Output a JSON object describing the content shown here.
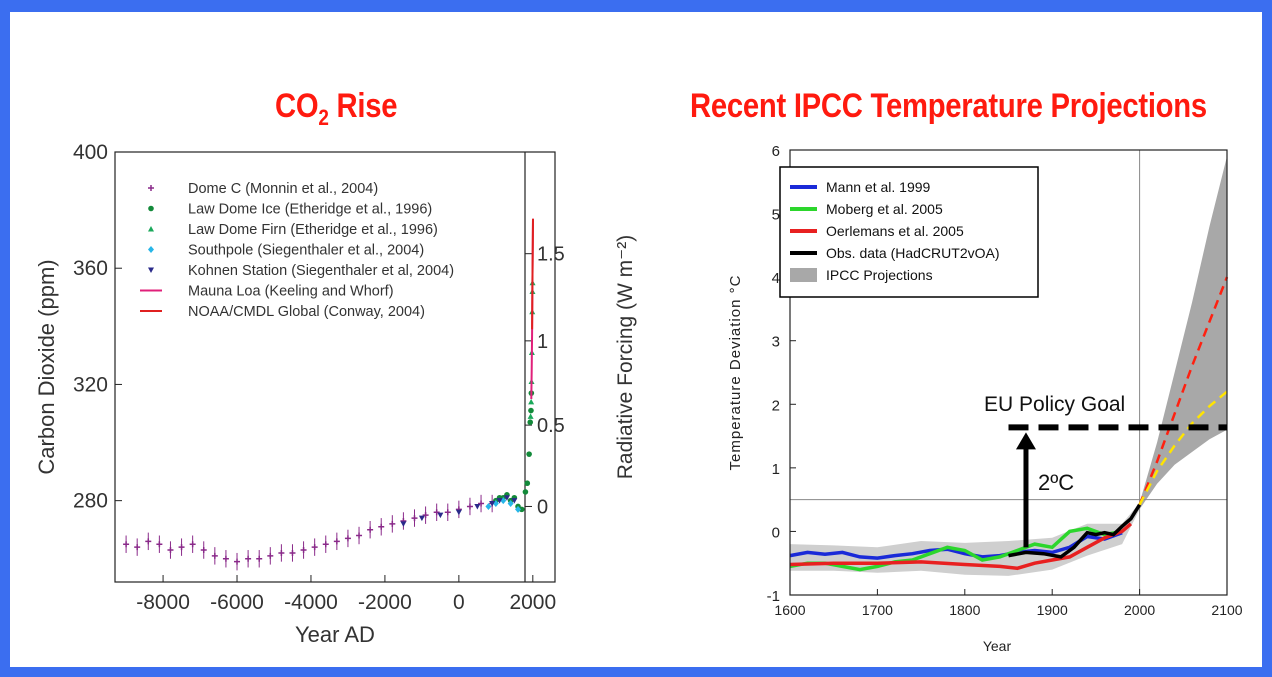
{
  "titles": {
    "left_main": "CO",
    "left_sub": "2",
    "left_rest": " Rise",
    "right": "Recent IPCC Temperature Projections"
  },
  "chart_data": [
    {
      "type": "scatter",
      "title": "CO2 Rise",
      "xlabel": "Year AD",
      "ylabel": "Carbon Dioxide (ppm)",
      "y2label": "Radiative Forcing (W m⁻²)",
      "xlim": [
        -9300,
        2600
      ],
      "ylim": [
        252,
        400
      ],
      "xticks": [
        -8000,
        -6000,
        -4000,
        -2000,
        0,
        2000
      ],
      "xtick_labels": [
        "-8000",
        "-6000",
        "-4000",
        "-2000",
        "0",
        "2000"
      ],
      "yticks": [
        280,
        320,
        360,
        400
      ],
      "ytick_labels": [
        "280",
        "320",
        "360",
        "400"
      ],
      "y2ticks": [
        {
          "ppm": 278,
          "label": "0"
        },
        {
          "ppm": 306,
          "label": "0.5"
        },
        {
          "ppm": 335,
          "label": "1"
        },
        {
          "ppm": 365,
          "label": "1.5"
        }
      ],
      "legend_position": "top-left",
      "series": [
        {
          "name": "Dome C (Monnin et al., 2004)",
          "color": "#8a2a8a",
          "marker": "plus",
          "points": [
            [
              -9000,
              265
            ],
            [
              -8700,
              264
            ],
            [
              -8400,
              266
            ],
            [
              -8100,
              265
            ],
            [
              -7800,
              263
            ],
            [
              -7500,
              264
            ],
            [
              -7200,
              265
            ],
            [
              -6900,
              263
            ],
            [
              -6600,
              261
            ],
            [
              -6300,
              260
            ],
            [
              -6000,
              259
            ],
            [
              -5700,
              260
            ],
            [
              -5400,
              260
            ],
            [
              -5100,
              261
            ],
            [
              -4800,
              262
            ],
            [
              -4500,
              262
            ],
            [
              -4200,
              263
            ],
            [
              -3900,
              264
            ],
            [
              -3600,
              265
            ],
            [
              -3300,
              266
            ],
            [
              -3000,
              267
            ],
            [
              -2700,
              268
            ],
            [
              -2400,
              270
            ],
            [
              -2100,
              271
            ],
            [
              -1800,
              272
            ],
            [
              -1500,
              273
            ],
            [
              -1200,
              274
            ],
            [
              -900,
              275
            ],
            [
              -600,
              276
            ],
            [
              -300,
              276
            ],
            [
              0,
              277
            ],
            [
              300,
              278
            ],
            [
              600,
              279
            ],
            [
              900,
              279
            ]
          ]
        },
        {
          "name": "Law Dome Ice (Etheridge et al., 1996)",
          "color": "#138a3a",
          "marker": "circle",
          "points": [
            [
              1000,
              280
            ],
            [
              1100,
              281
            ],
            [
              1200,
              281
            ],
            [
              1300,
              282
            ],
            [
              1400,
              280
            ],
            [
              1500,
              281
            ],
            [
              1600,
              278
            ],
            [
              1700,
              277
            ],
            [
              1800,
              283
            ],
            [
              1850,
              286
            ],
            [
              1900,
              296
            ],
            [
              1930,
              307
            ],
            [
              1950,
              311
            ],
            [
              1960,
              317
            ]
          ]
        },
        {
          "name": "Law Dome Firn (Etheridge et al., 1996)",
          "color": "#1aa85a",
          "marker": "triangle",
          "points": [
            [
              1940,
              309
            ],
            [
              1955,
              314
            ],
            [
              1965,
              321
            ],
            [
              1975,
              331
            ],
            [
              1985,
              345
            ],
            [
              1990,
              352
            ],
            [
              1993,
              355
            ]
          ]
        },
        {
          "name": "Southpole (Siegenthaler et al., 2004)",
          "color": "#27b6e8",
          "marker": "diamond",
          "points": [
            [
              800,
              278
            ],
            [
              1000,
              279
            ],
            [
              1200,
              280
            ],
            [
              1400,
              279
            ],
            [
              1600,
              277
            ]
          ]
        },
        {
          "name": "Kohnen Station (Siegenthaler et al, 2004)",
          "color": "#2a2a8a",
          "marker": "triangle-down",
          "points": [
            [
              -1500,
              272
            ],
            [
              -1000,
              274
            ],
            [
              -500,
              275
            ],
            [
              0,
              276
            ],
            [
              500,
              278
            ],
            [
              900,
              279
            ],
            [
              1100,
              280
            ],
            [
              1300,
              281
            ],
            [
              1500,
              280
            ]
          ]
        },
        {
          "name": "Mauna Loa (Keeling and Whorf)",
          "color": "#e0207a",
          "marker": "line",
          "points": [
            [
              1958,
              315
            ],
            [
              1970,
              325
            ],
            [
              1980,
              338
            ],
            [
              1990,
              354
            ],
            [
              2000,
              369
            ],
            [
              2004,
              377
            ]
          ]
        },
        {
          "name": "NOAA/CMDL Global  (Conway, 2004)",
          "color": "#e02020",
          "marker": "line",
          "points": [
            [
              1980,
              339
            ],
            [
              1990,
              354
            ],
            [
              2000,
              369
            ],
            [
              2004,
              377
            ]
          ]
        }
      ]
    },
    {
      "type": "line",
      "title": "Recent IPCC Temperature Projections",
      "xlabel": "Year",
      "ylabel": "Temperature Deviation °C",
      "xlim": [
        1600,
        2100
      ],
      "ylim": [
        -1,
        6
      ],
      "xticks": [
        1600,
        1700,
        1800,
        1900,
        2000,
        2100
      ],
      "xtick_labels": [
        "1600",
        "1700",
        "1800",
        "1900",
        "2000",
        "2100"
      ],
      "yticks": [
        -1,
        0,
        1,
        2,
        3,
        4,
        5,
        6
      ],
      "ytick_labels": [
        "-1",
        "0",
        "1",
        "2",
        "3",
        "4",
        "5",
        "6"
      ],
      "legend_position": "top-left",
      "series": [
        {
          "name": "Mann et al. 1999",
          "color": "#1a2ad8",
          "points": [
            [
              1600,
              -0.38
            ],
            [
              1620,
              -0.33
            ],
            [
              1640,
              -0.36
            ],
            [
              1660,
              -0.33
            ],
            [
              1680,
              -0.4
            ],
            [
              1700,
              -0.42
            ],
            [
              1720,
              -0.38
            ],
            [
              1740,
              -0.35
            ],
            [
              1760,
              -0.3
            ],
            [
              1780,
              -0.28
            ],
            [
              1800,
              -0.35
            ],
            [
              1820,
              -0.4
            ],
            [
              1840,
              -0.38
            ],
            [
              1860,
              -0.33
            ],
            [
              1880,
              -0.3
            ],
            [
              1900,
              -0.33
            ],
            [
              1920,
              -0.25
            ],
            [
              1940,
              -0.08
            ],
            [
              1960,
              -0.12
            ],
            [
              1980,
              -0.02
            ]
          ]
        },
        {
          "name": "Moberg et al. 2005",
          "color": "#2cd62c",
          "points": [
            [
              1600,
              -0.55
            ],
            [
              1620,
              -0.5
            ],
            [
              1640,
              -0.5
            ],
            [
              1660,
              -0.55
            ],
            [
              1680,
              -0.6
            ],
            [
              1700,
              -0.55
            ],
            [
              1720,
              -0.48
            ],
            [
              1740,
              -0.45
            ],
            [
              1760,
              -0.35
            ],
            [
              1780,
              -0.25
            ],
            [
              1800,
              -0.3
            ],
            [
              1820,
              -0.45
            ],
            [
              1840,
              -0.4
            ],
            [
              1860,
              -0.3
            ],
            [
              1880,
              -0.2
            ],
            [
              1900,
              -0.25
            ],
            [
              1920,
              0.0
            ],
            [
              1940,
              0.05
            ],
            [
              1960,
              -0.05
            ],
            [
              1980,
              0.0
            ]
          ]
        },
        {
          "name": "Oerlemans et al. 2005",
          "color": "#e82020",
          "points": [
            [
              1600,
              -0.52
            ],
            [
              1650,
              -0.5
            ],
            [
              1700,
              -0.5
            ],
            [
              1750,
              -0.48
            ],
            [
              1800,
              -0.52
            ],
            [
              1840,
              -0.55
            ],
            [
              1860,
              -0.58
            ],
            [
              1880,
              -0.5
            ],
            [
              1900,
              -0.45
            ],
            [
              1920,
              -0.4
            ],
            [
              1940,
              -0.25
            ],
            [
              1960,
              -0.1
            ],
            [
              1980,
              0.0
            ],
            [
              1990,
              0.12
            ]
          ]
        },
        {
          "name": "Obs. data (HadCRUT2vOA)",
          "color": "#000000",
          "points": [
            [
              1850,
              -0.38
            ],
            [
              1870,
              -0.33
            ],
            [
              1890,
              -0.35
            ],
            [
              1910,
              -0.4
            ],
            [
              1925,
              -0.25
            ],
            [
              1940,
              -0.02
            ],
            [
              1950,
              -0.05
            ],
            [
              1960,
              -0.02
            ],
            [
              1970,
              -0.05
            ],
            [
              1980,
              0.08
            ],
            [
              1990,
              0.2
            ],
            [
              2000,
              0.42
            ]
          ]
        },
        {
          "name": "IPCC Projections",
          "color": "#a8a8a8",
          "band_upper": [
            [
              2000,
              0.45
            ],
            [
              2020,
              1.4
            ],
            [
              2040,
              2.5
            ],
            [
              2060,
              3.6
            ],
            [
              2080,
              4.8
            ],
            [
              2100,
              5.9
            ]
          ],
          "band_lower": [
            [
              2000,
              0.35
            ],
            [
              2020,
              0.75
            ],
            [
              2040,
              1.05
            ],
            [
              2060,
              1.25
            ],
            [
              2080,
              1.45
            ],
            [
              2100,
              1.6
            ]
          ]
        },
        {
          "name": "",
          "color": "#ff2010",
          "dashed": true,
          "points": [
            [
              2000,
              0.42
            ],
            [
              2020,
              1.1
            ],
            [
              2040,
              1.85
            ],
            [
              2060,
              2.6
            ],
            [
              2080,
              3.3
            ],
            [
              2100,
              4.0
            ]
          ]
        },
        {
          "name": "",
          "color": "#ffe400",
          "dashed": true,
          "points": [
            [
              2000,
              0.42
            ],
            [
              2020,
              0.95
            ],
            [
              2040,
              1.35
            ],
            [
              2060,
              1.7
            ],
            [
              2080,
              1.97
            ],
            [
              2100,
              2.2
            ]
          ]
        }
      ],
      "annotations": {
        "policy_label": "EU Policy Goal",
        "policy_level": 1.7,
        "policy_start": 1870,
        "arrow_label": "2ºC",
        "arrow_x": 1870,
        "arrow_from": -0.25,
        "baseline": 0.5
      }
    }
  ]
}
